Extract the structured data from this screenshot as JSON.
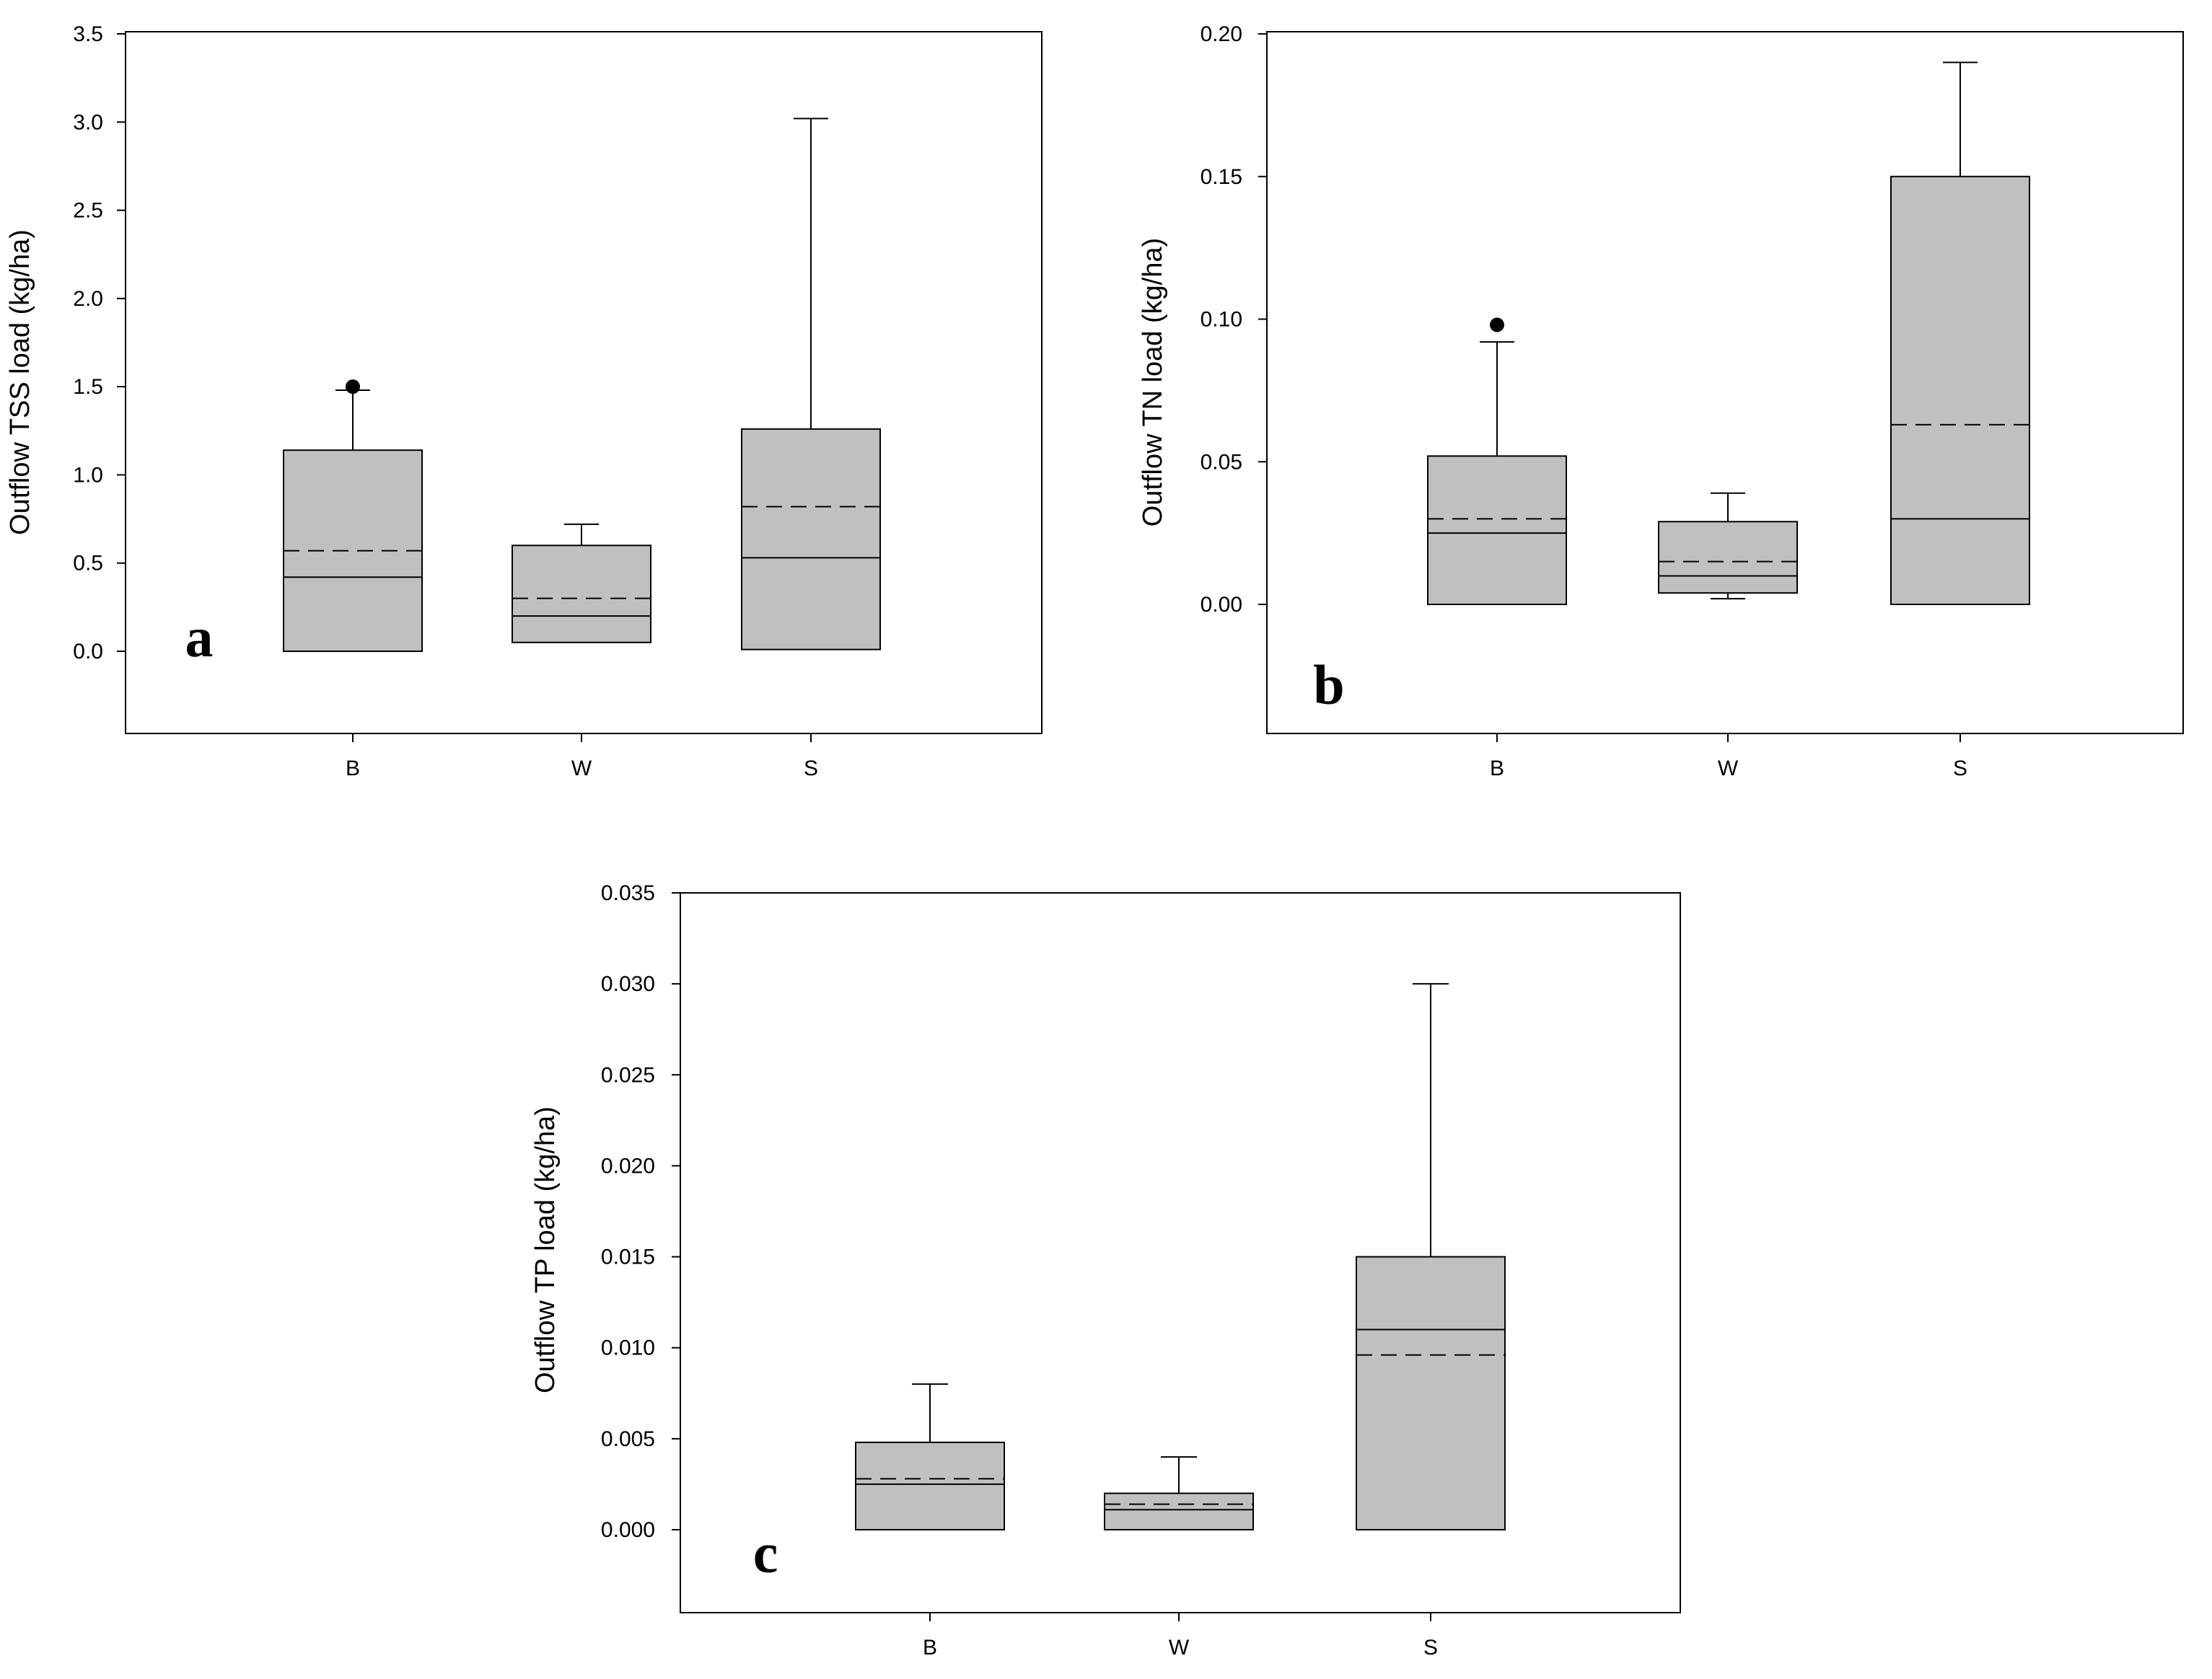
{
  "chart_data": [
    {
      "type": "box",
      "panel_label": "a",
      "title": "",
      "xlabel": "",
      "ylabel": "Outflow TSS load (kg/ha)",
      "ylim": [
        -0.45,
        3.5
      ],
      "yticks": [
        0.0,
        0.5,
        1.0,
        1.5,
        2.0,
        2.5,
        3.0,
        3.5
      ],
      "ytick_labels": [
        "0.0",
        "0.5",
        "1.0",
        "1.5",
        "2.0",
        "2.5",
        "3.0",
        "3.5"
      ],
      "categories": [
        "B",
        "W",
        "S"
      ],
      "box_color": "#c0c0c0",
      "boxes": [
        {
          "category": "B",
          "whisker_low": 0.0,
          "q1": 0.0,
          "median": 0.42,
          "mean": 0.57,
          "q3": 1.14,
          "whisker_high": 1.48,
          "outliers": [
            1.5
          ]
        },
        {
          "category": "W",
          "whisker_low": 0.05,
          "q1": 0.05,
          "median": 0.2,
          "mean": 0.3,
          "q3": 0.6,
          "whisker_high": 0.72,
          "outliers": []
        },
        {
          "category": "S",
          "whisker_low": 0.01,
          "q1": 0.01,
          "median": 0.53,
          "mean": 0.82,
          "q3": 1.26,
          "whisker_high": 3.02,
          "outliers": []
        }
      ]
    },
    {
      "type": "box",
      "panel_label": "b",
      "title": "",
      "xlabel": "",
      "ylabel": "Outflow TN load (kg/ha)",
      "ylim": [
        -0.045,
        0.2
      ],
      "yticks": [
        0.0,
        0.05,
        0.1,
        0.15,
        0.2
      ],
      "ytick_labels": [
        "0.00",
        "0.05",
        "0.10",
        "0.15",
        "0.20"
      ],
      "categories": [
        "B",
        "W",
        "S"
      ],
      "box_color": "#c0c0c0",
      "boxes": [
        {
          "category": "B",
          "whisker_low": 0.0,
          "q1": 0.0,
          "median": 0.025,
          "mean": 0.03,
          "q3": 0.052,
          "whisker_high": 0.092,
          "outliers": [
            0.098
          ]
        },
        {
          "category": "W",
          "whisker_low": 0.002,
          "q1": 0.004,
          "median": 0.01,
          "mean": 0.015,
          "q3": 0.029,
          "whisker_high": 0.039,
          "outliers": []
        },
        {
          "category": "S",
          "whisker_low": 0.0,
          "q1": 0.0,
          "median": 0.03,
          "mean": 0.063,
          "q3": 0.15,
          "whisker_high": 0.19,
          "outliers": []
        }
      ]
    },
    {
      "type": "box",
      "panel_label": "c",
      "title": "",
      "xlabel": "",
      "ylabel": "Outflow TP load (kg/ha)",
      "ylim": [
        -0.0045,
        0.035
      ],
      "yticks": [
        0.0,
        0.005,
        0.01,
        0.015,
        0.02,
        0.025,
        0.03,
        0.035
      ],
      "ytick_labels": [
        "0.000",
        "0.005",
        "0.010",
        "0.015",
        "0.020",
        "0.025",
        "0.030",
        "0.035"
      ],
      "categories": [
        "B",
        "W",
        "S"
      ],
      "box_color": "#c0c0c0",
      "boxes": [
        {
          "category": "B",
          "whisker_low": 0.0,
          "q1": 0.0,
          "median": 0.0025,
          "mean": 0.0028,
          "q3": 0.0048,
          "whisker_high": 0.008,
          "outliers": []
        },
        {
          "category": "W",
          "whisker_low": 0.0,
          "q1": 0.0,
          "median": 0.0011,
          "mean": 0.0014,
          "q3": 0.002,
          "whisker_high": 0.004,
          "outliers": []
        },
        {
          "category": "S",
          "whisker_low": 0.0,
          "q1": 0.0,
          "median": 0.011,
          "mean": 0.0096,
          "q3": 0.015,
          "whisker_high": 0.03,
          "outliers": []
        }
      ]
    }
  ]
}
